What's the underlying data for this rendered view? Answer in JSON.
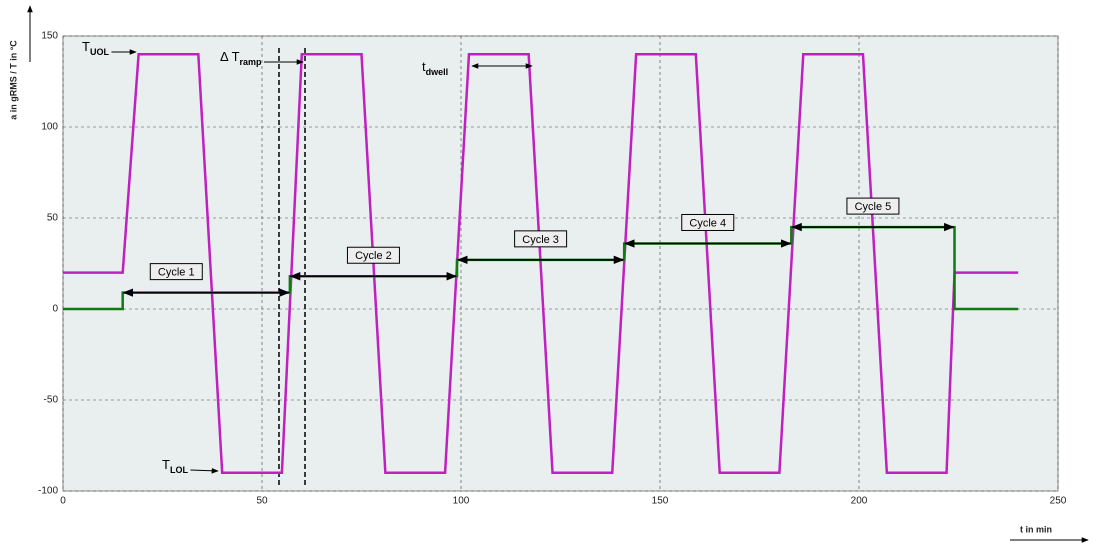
{
  "chart_data": {
    "type": "line",
    "y_label": "a in gRMS / T in °C",
    "x_label": "t in min",
    "xlim": [
      0,
      250
    ],
    "ylim": [
      -100,
      150
    ],
    "xticks": [
      0,
      50,
      100,
      150,
      200,
      250
    ],
    "yticks": [
      -100,
      -50,
      0,
      50,
      100,
      150
    ],
    "grid": true,
    "series": [
      {
        "name": "T",
        "color": "#c020c0",
        "x": [
          0,
          15,
          19,
          34,
          40,
          55,
          60,
          75,
          81,
          96,
          102,
          117,
          123,
          138,
          144,
          159,
          165,
          180,
          186,
          201,
          207,
          222,
          224,
          240
        ],
        "values": [
          20,
          20,
          140,
          140,
          -90,
          -90,
          140,
          140,
          -90,
          -90,
          140,
          140,
          -90,
          -90,
          140,
          140,
          -90,
          -90,
          140,
          140,
          -90,
          -90,
          20,
          20
        ]
      },
      {
        "name": "a",
        "color": "#127a12",
        "x": [
          0,
          15,
          15,
          57,
          57,
          99,
          99,
          141,
          141,
          183,
          183,
          224,
          224,
          240
        ],
        "values": [
          0,
          0,
          9,
          9,
          18,
          18,
          27,
          27,
          36,
          36,
          45,
          45,
          0,
          0
        ]
      }
    ],
    "annotations": [
      {
        "text": "T",
        "sub": "UOL"
      },
      {
        "text": "T",
        "sub": "LOL"
      },
      {
        "text": "Δ T",
        "sub": "ramp"
      },
      {
        "text": "t",
        "sub": "dwell"
      }
    ],
    "cycles": [
      "Cycle 1",
      "Cycle 2",
      "Cycle 3",
      "Cycle 4",
      "Cycle 5"
    ]
  }
}
